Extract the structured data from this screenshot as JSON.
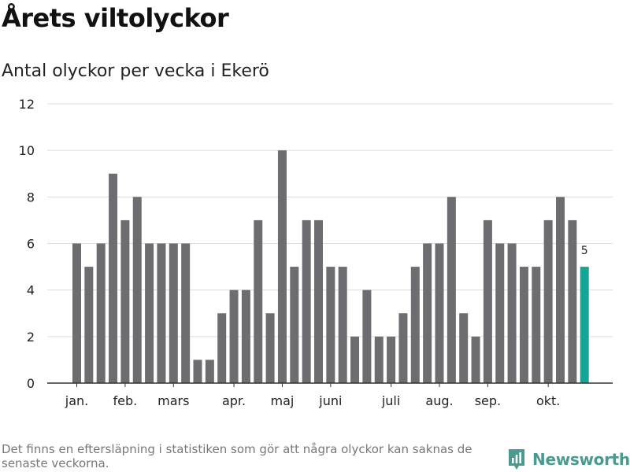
{
  "title": "Årets viltolyckor",
  "subtitle": "Antal olyckor per vecka i Ekerö",
  "footnote": "Det finns en eftersläpning i statistiken som gör att några olyckor kan saknas de senaste veckorna.",
  "brand": {
    "name": "Newsworthy",
    "icon": "newsworthy-logo-icon",
    "color": "#4a9a8f"
  },
  "chart_data": {
    "type": "bar",
    "title": "",
    "xlabel": "",
    "ylabel": "",
    "ylim": [
      0,
      12
    ],
    "yticks": [
      0,
      2,
      4,
      6,
      8,
      10,
      12
    ],
    "grid": true,
    "colors": {
      "bar": "#6d6c71",
      "highlight": "#13a596",
      "grid": "#dddddd",
      "axis": "#333333"
    },
    "x_tick_labels": [
      {
        "label": "jan.",
        "week": 1
      },
      {
        "label": "feb.",
        "week": 5
      },
      {
        "label": "mars",
        "week": 9
      },
      {
        "label": "apr.",
        "week": 14
      },
      {
        "label": "maj",
        "week": 18
      },
      {
        "label": "juni",
        "week": 22
      },
      {
        "label": "juli",
        "week": 27
      },
      {
        "label": "aug.",
        "week": 31
      },
      {
        "label": "sep.",
        "week": 35
      },
      {
        "label": "okt.",
        "week": 40
      }
    ],
    "values": [
      6,
      5,
      6,
      9,
      7,
      8,
      6,
      6,
      6,
      6,
      1,
      1,
      3,
      4,
      4,
      7,
      3,
      10,
      5,
      7,
      7,
      5,
      5,
      2,
      4,
      2,
      2,
      3,
      5,
      6,
      6,
      8,
      3,
      2,
      7,
      6,
      6,
      5,
      5,
      7,
      8,
      7,
      5
    ],
    "highlight_index": 42,
    "data_labels": [
      {
        "index": 42,
        "text": "5"
      }
    ]
  }
}
